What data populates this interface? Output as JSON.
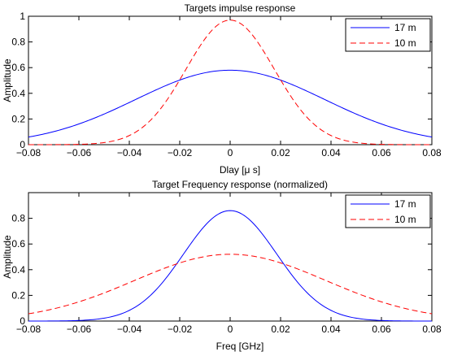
{
  "chart_data": [
    {
      "type": "line",
      "title": "Targets impulse response",
      "xlabel": "Dlay [μ s]",
      "ylabel": "Amplitude",
      "xlim": [
        -0.08,
        0.08
      ],
      "ylim": [
        0,
        1
      ],
      "xticks": [
        -0.08,
        -0.06,
        -0.04,
        -0.02,
        0,
        0.02,
        0.04,
        0.06,
        0.08
      ],
      "xtick_labels": [
        "−0.08",
        "−0.06",
        "−0.04",
        "−0.02",
        "0",
        "0.02",
        "0.04",
        "0.06",
        "0.08"
      ],
      "yticks": [
        0,
        0.2,
        0.4,
        0.6,
        0.8,
        1
      ],
      "ytick_labels": [
        "0",
        "0.2",
        "0.4",
        "0.6",
        "0.8",
        "1"
      ],
      "grid": false,
      "legend_position": "top-right",
      "series": [
        {
          "name": "17 m",
          "color": "#0000ff",
          "style": "solid",
          "peak": 0.58,
          "sigma": 0.0375
        },
        {
          "name": "10 m",
          "color": "#ff0000",
          "style": "dashed",
          "peak": 0.97,
          "sigma": 0.0175
        }
      ]
    },
    {
      "type": "line",
      "title": "Target Frequency response (normalized)",
      "xlabel": "Freq [GHz]",
      "ylabel": "Amplitude",
      "xlim": [
        -0.08,
        0.08
      ],
      "ylim": [
        0,
        1
      ],
      "xticks": [
        -0.08,
        -0.06,
        -0.04,
        -0.02,
        0,
        0.02,
        0.04,
        0.06,
        0.08
      ],
      "xtick_labels": [
        "−0.08",
        "−0.06",
        "−0.04",
        "−0.02",
        "0",
        "0.02",
        "0.04",
        "0.06",
        "0.08"
      ],
      "yticks": [
        0,
        0.2,
        0.4,
        0.6,
        0.8
      ],
      "ytick_labels": [
        "0",
        "0.2",
        "0.4",
        "0.6",
        "0.8"
      ],
      "grid": false,
      "legend_position": "top-right",
      "series": [
        {
          "name": "17 m",
          "color": "#0000ff",
          "style": "solid",
          "peak": 0.86,
          "sigma": 0.0185
        },
        {
          "name": "10 m",
          "color": "#ff0000",
          "style": "dashed",
          "peak": 0.52,
          "sigma": 0.038
        }
      ]
    }
  ]
}
